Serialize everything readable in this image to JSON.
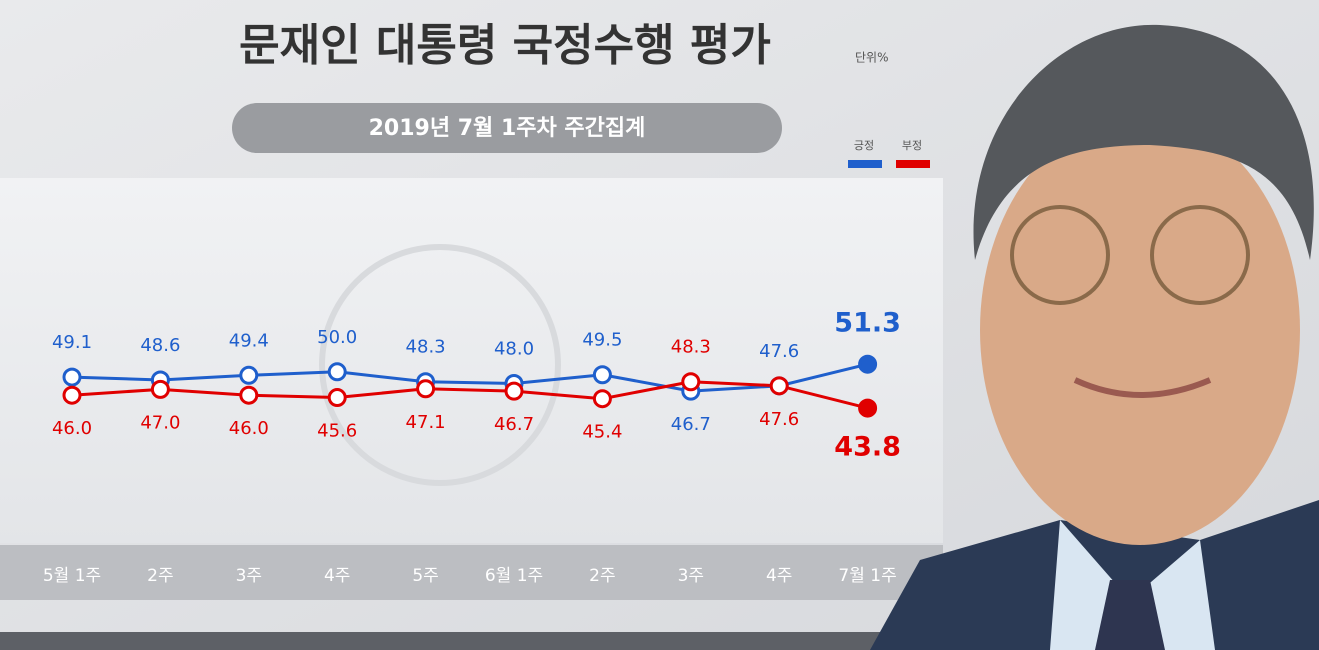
{
  "chart_data": {
    "type": "line",
    "title": "문재인 대통령 국정수행 평가",
    "unit": "단위%",
    "subtitle": "2019년 7월 1주차 주간집계",
    "categories": [
      "5월 1주",
      "2주",
      "3주",
      "4주",
      "5주",
      "6월 1주",
      "2주",
      "3주",
      "4주",
      "7월 1주"
    ],
    "series": [
      {
        "name": "긍정",
        "color": "#1f5fcc",
        "values": [
          49.1,
          48.6,
          49.4,
          50.0,
          48.3,
          48.0,
          49.5,
          46.7,
          47.6,
          51.3
        ],
        "value_labels": [
          "49.1",
          "48.6",
          "49.4",
          "50.0",
          "48.3",
          "48.0",
          "49.5",
          "46.7",
          "47.6",
          "51.3"
        ]
      },
      {
        "name": "부정",
        "color": "#e00000",
        "values": [
          46.0,
          47.0,
          46.0,
          45.6,
          47.1,
          46.7,
          45.4,
          48.3,
          47.6,
          43.8
        ],
        "value_labels": [
          "46.0",
          "47.0",
          "46.0",
          "45.6",
          "47.1",
          "46.7",
          "45.4",
          "48.3",
          "47.6",
          "43.8"
        ]
      }
    ],
    "ylim": [
      38,
      58
    ]
  }
}
